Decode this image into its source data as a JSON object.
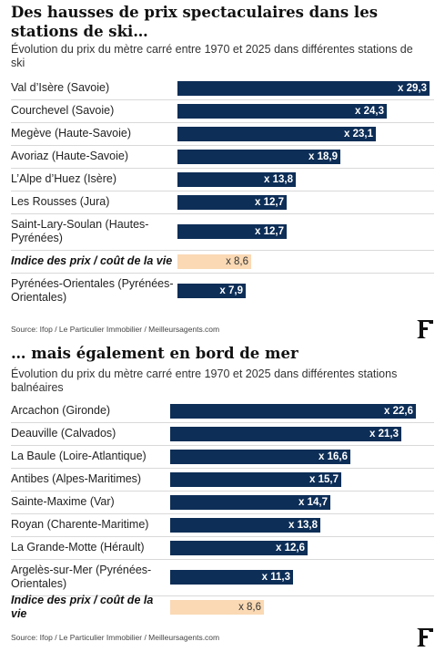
{
  "charts": [
    {
      "title": "Des hausses de prix spectaculaires dans les stations de ski…",
      "subtitle": "Évolution du prix du mètre carré entre 1970 et 2025 dans différentes stations de ski",
      "source": "Source: Ifop / Le Particulier Immobilier / Meilleursagents.com"
    },
    {
      "title": "… mais également en bord de mer",
      "subtitle": "Évolution du prix du mètre carré entre 1970 et 2025 dans différentes stations balnéaires",
      "source": "Source: Ifop / Le Particulier Immobilier / Meilleursagents.com"
    }
  ],
  "colors": {
    "bar": "#0d2e57",
    "reference_bar": "#fad9b4"
  },
  "logo": {
    "icon": "le-figaro-f-logo",
    "letter": "F"
  },
  "chart_data": [
    {
      "type": "bar",
      "orientation": "horizontal",
      "title": "Des hausses de prix spectaculaires dans les stations de ski…",
      "subtitle": "Évolution du prix du mètre carré entre 1970 et 2025 dans différentes stations de ski",
      "categories": [
        "Val d’Isère (Savoie)",
        "Courchevel (Savoie)",
        "Megève (Haute-Savoie)",
        "Avoriaz (Haute-Savoie)",
        "L’Alpe d’Huez (Isère)",
        "Les Rousses (Jura)",
        "Saint-Lary-Soulan (Hautes-Pyrénées)",
        "Indice des prix / coût de la vie",
        "Pyrénées-Orientales (Pyrénées-Orientales)"
      ],
      "values": [
        29.3,
        24.3,
        23.1,
        18.9,
        13.8,
        12.7,
        12.7,
        8.6,
        7.9
      ],
      "value_labels": [
        "x 29,3",
        "x 24,3",
        "x 23,1",
        "x 18,9",
        "x 13,8",
        "x 12,7",
        "x 12,7",
        "x 8,6",
        "x 7,9"
      ],
      "highlight_index": 7,
      "xlim": [
        0,
        29.3
      ],
      "grid": false,
      "source": "Source: Ifop / Le Particulier Immobilier / Meilleursagents.com"
    },
    {
      "type": "bar",
      "orientation": "horizontal",
      "title": "… mais également en bord de mer",
      "subtitle": "Évolution du prix du mètre carré entre 1970 et 2025 dans différentes stations balnéaires",
      "categories": [
        "Arcachon (Gironde)",
        "Deauville (Calvados)",
        "La Baule (Loire-Atlantique)",
        "Antibes (Alpes-Maritimes)",
        "Sainte-Maxime (Var)",
        "Royan (Charente-Maritime)",
        "La Grande-Motte (Hérault)",
        "Argelès-sur-Mer (Pyrénées-Orientales)",
        "Indice des prix / coût de la vie"
      ],
      "values": [
        22.6,
        21.3,
        16.6,
        15.7,
        14.7,
        13.8,
        12.6,
        11.3,
        8.6
      ],
      "value_labels": [
        "x 22,6",
        "x 21,3",
        "x 16,6",
        "x 15,7",
        "x 14,7",
        "x 13,8",
        "x 12,6",
        "x 11,3",
        "x 8,6"
      ],
      "highlight_index": 8,
      "xlim": [
        0,
        22.6
      ],
      "grid": false,
      "source": "Source: Ifop / Le Particulier Immobilier / Meilleursagents.com"
    }
  ]
}
